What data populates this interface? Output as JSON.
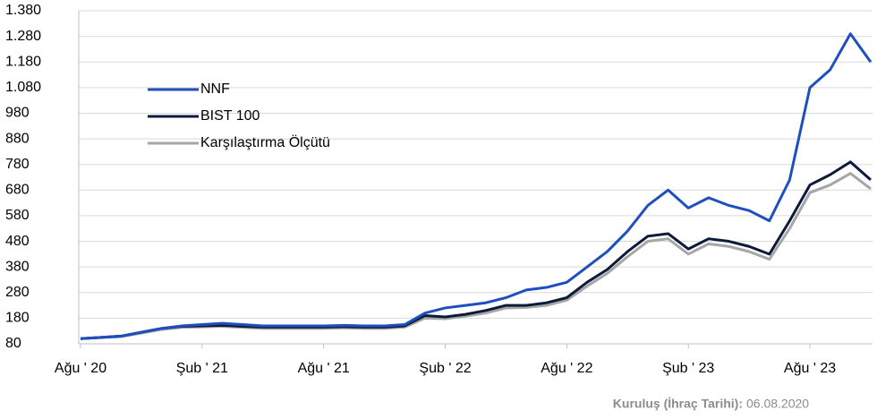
{
  "chart_data": {
    "type": "line",
    "categories": [
      "Ağu ' 20",
      null,
      null,
      null,
      null,
      null,
      "Şub ' 21",
      null,
      null,
      null,
      null,
      null,
      "Ağu ' 21",
      null,
      null,
      null,
      null,
      null,
      "Şub ' 22",
      null,
      null,
      null,
      null,
      null,
      "Ağu ' 22",
      null,
      null,
      null,
      null,
      null,
      "Şub ' 23",
      null,
      null,
      null,
      null,
      null,
      "Ağu ' 23",
      null,
      null,
      null
    ],
    "series": [
      {
        "name": "NNF",
        "color": "#1f4fbf",
        "values": [
          100,
          105,
          110,
          125,
          140,
          150,
          155,
          160,
          155,
          150,
          150,
          150,
          150,
          152,
          150,
          150,
          155,
          200,
          220,
          230,
          240,
          260,
          290,
          300,
          320,
          380,
          440,
          520,
          620,
          680,
          610,
          650,
          620,
          600,
          560,
          720,
          1080,
          1150,
          1290,
          1180
        ]
      },
      {
        "name": "BIST 100",
        "color": "#0d1a3a",
        "values": [
          100,
          105,
          110,
          125,
          140,
          148,
          150,
          152,
          148,
          145,
          145,
          145,
          145,
          147,
          145,
          145,
          150,
          190,
          185,
          195,
          210,
          230,
          230,
          240,
          260,
          320,
          370,
          440,
          500,
          510,
          450,
          490,
          480,
          460,
          430,
          560,
          700,
          740,
          790,
          720
        ]
      },
      {
        "name": "Karşılaştırma Ölçütü",
        "color": "#a6a6a6",
        "values": [
          100,
          104,
          108,
          122,
          136,
          144,
          146,
          148,
          144,
          140,
          140,
          140,
          140,
          142,
          140,
          140,
          145,
          180,
          178,
          188,
          200,
          220,
          222,
          230,
          250,
          305,
          355,
          420,
          480,
          490,
          430,
          470,
          460,
          440,
          410,
          530,
          670,
          700,
          745,
          685
        ]
      }
    ],
    "ylim": [
      80,
      1380
    ],
    "yticks": [
      80,
      180,
      280,
      380,
      480,
      580,
      680,
      780,
      880,
      980,
      {
        "value": 1080,
        "label": "1.080"
      },
      {
        "value": 1180,
        "label": "1.180"
      },
      {
        "value": 1280,
        "label": "1.280"
      },
      {
        "value": 1380,
        "label": "1.380"
      }
    ],
    "grid": true,
    "legend": "upper left",
    "footer_label": "Kuruluş (İhraç Tarihi):",
    "footer_value": "06.08.2020"
  }
}
